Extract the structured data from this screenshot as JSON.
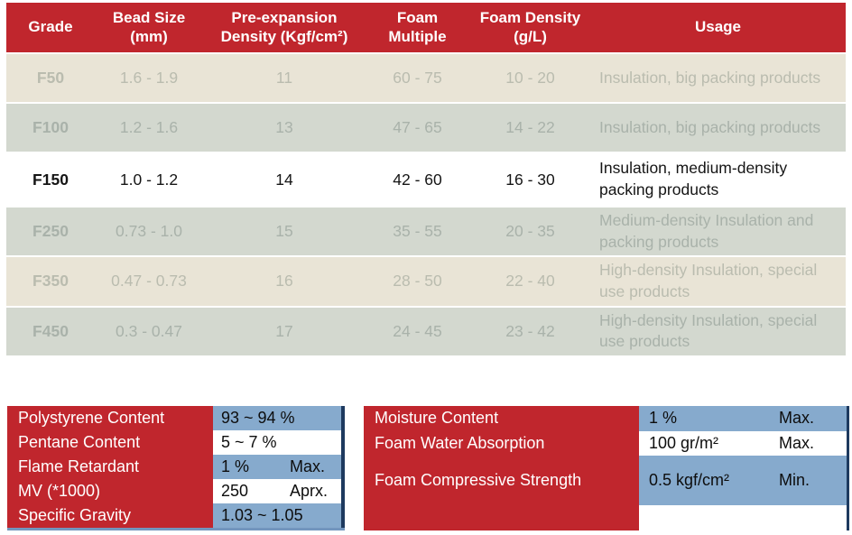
{
  "colors": {
    "header_red": "#C0262D",
    "row_beige": "#E9E4D6",
    "row_gray_green": "#D3D8CF",
    "highlight_row_white": "#FFFFFF",
    "muted_row_text": "#AEB3A9",
    "value_cell_blue": "#86AACD",
    "navy_border": "#1E3A5F"
  },
  "main_table": {
    "headers": {
      "grade": "Grade",
      "bead_size": "Bead Size\n(mm)",
      "pre_expansion_density": "Pre-expansion\nDensity (Kgf/cm²)",
      "foam_multiple": "Foam\nMultiple",
      "foam_density": "Foam Density\n(g/L)",
      "usage": "Usage"
    },
    "rows": [
      {
        "grade": "F50",
        "bead_size": "1.6 - 1.9",
        "pre_expansion_density": "11",
        "foam_multiple": "60 - 75",
        "foam_density": "10 - 20",
        "usage": "Insulation, big packing products"
      },
      {
        "grade": "F100",
        "bead_size": "1.2 - 1.6",
        "pre_expansion_density": "13",
        "foam_multiple": "47 - 65",
        "foam_density": "14 - 22",
        "usage": "Insulation, big packing products"
      },
      {
        "grade": "F150",
        "bead_size": "1.0 - 1.2",
        "pre_expansion_density": "14",
        "foam_multiple": "42 - 60",
        "foam_density": "16 - 30",
        "usage": "Insulation, medium-density packing products"
      },
      {
        "grade": "F250",
        "bead_size": "0.73 - 1.0",
        "pre_expansion_density": "15",
        "foam_multiple": "35 - 55",
        "foam_density": "20 - 35",
        "usage": "Medium-density Insulation and packing products"
      },
      {
        "grade": "F350",
        "bead_size": "0.47 - 0.73",
        "pre_expansion_density": "16",
        "foam_multiple": "28 - 50",
        "foam_density": "22 - 40",
        "usage": "High-density Insulation, special use products"
      },
      {
        "grade": "F450",
        "bead_size": "0.3 - 0.47",
        "pre_expansion_density": "17",
        "foam_multiple": "24 - 45",
        "foam_density": "23 - 42",
        "usage": "High-density Insulation, special use products"
      }
    ],
    "highlighted_grade": "F150"
  },
  "spec_left": {
    "rows": [
      {
        "label": "Polystyrene Content",
        "value": "93 ~ 94 %",
        "qualifier": ""
      },
      {
        "label": "Pentane Content",
        "value": "5 ~ 7 %",
        "qualifier": ""
      },
      {
        "label": "Flame Retardant",
        "value": "1 %",
        "qualifier": "Max."
      },
      {
        "label": "MV (*1000)",
        "value": "250",
        "qualifier": "Aprx."
      },
      {
        "label": "Specific Gravity",
        "value": "1.03 ~ 1.05",
        "qualifier": ""
      }
    ]
  },
  "spec_right": {
    "rows": [
      {
        "label": "Moisture Content",
        "value": "1 %",
        "qualifier": "Max."
      },
      {
        "label": "Foam Water Absorption",
        "value": "100 gr/m²",
        "qualifier": "Max."
      },
      {
        "label": "Foam Compressive Strength",
        "value": "0.5 kgf/cm²",
        "qualifier": "Min."
      }
    ]
  }
}
